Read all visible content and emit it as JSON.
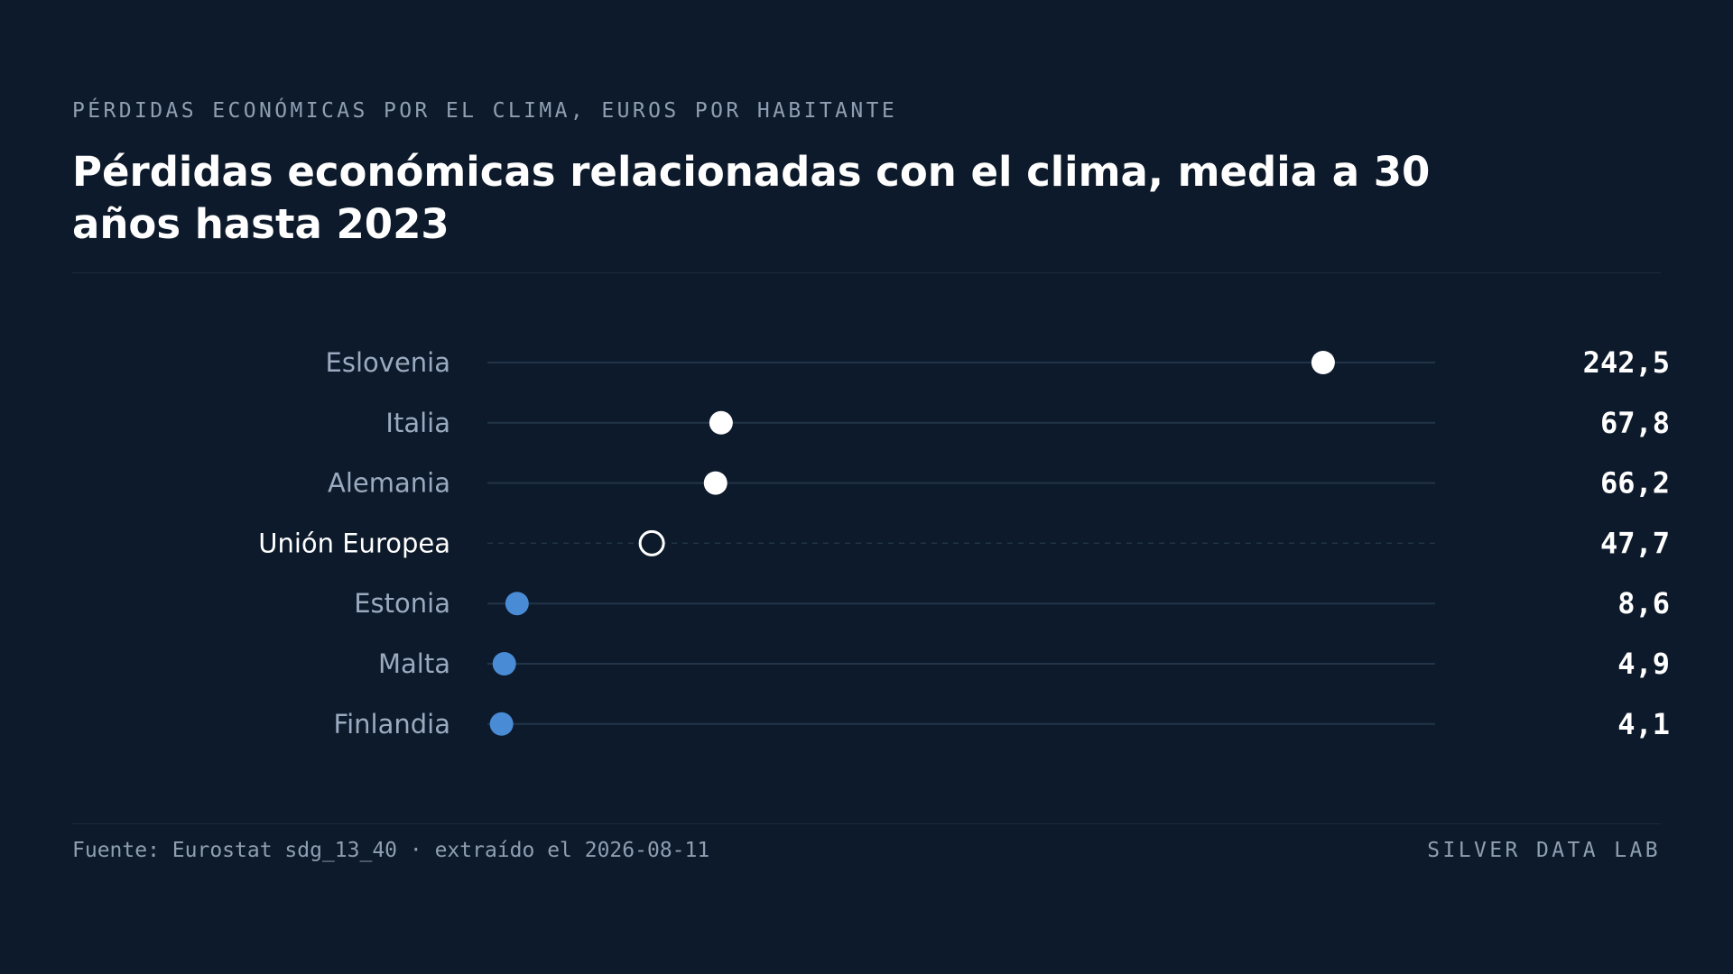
{
  "header": {
    "kicker": "PÉRDIDAS ECONÓMICAS POR EL CLIMA, EUROS POR HABITANTE",
    "title": "Pérdidas económicas relacionadas con el clima, media a 30 años hasta 2023"
  },
  "footer": {
    "source": "Fuente: Eurostat sdg_13_40 · extraído el 2026-08-11",
    "brand": "SILVER DATA LAB"
  },
  "colors": {
    "background": "#0d1a2b",
    "track": "#223449",
    "high_dot": "#ffffff",
    "low_dot": "#4a8bd6",
    "reference_dot": "#ffffff",
    "label_text": "#9aaac0",
    "reference_label_text": "#ffffff",
    "value_text": "#ffffff"
  },
  "chart_data": {
    "type": "scatter",
    "orientation": "horizontal dot plot",
    "unit": "euros por habitante",
    "xlim": [
      0,
      275
    ],
    "grid": false,
    "legend": "none",
    "categories": [
      "Eslovenia",
      "Italia",
      "Alemania",
      "Unión Europea",
      "Estonia",
      "Malta",
      "Finlandia"
    ],
    "values": [
      242.5,
      67.8,
      66.2,
      47.7,
      8.6,
      4.9,
      4.1
    ],
    "value_labels": [
      "242,5",
      "67,8",
      "66,2",
      "47,7",
      "8,6",
      "4,9",
      "4,1"
    ],
    "reference_category": "Unión Europea",
    "high_categories": [
      "Eslovenia",
      "Italia",
      "Alemania"
    ],
    "low_categories": [
      "Estonia",
      "Malta",
      "Finlandia"
    ]
  }
}
